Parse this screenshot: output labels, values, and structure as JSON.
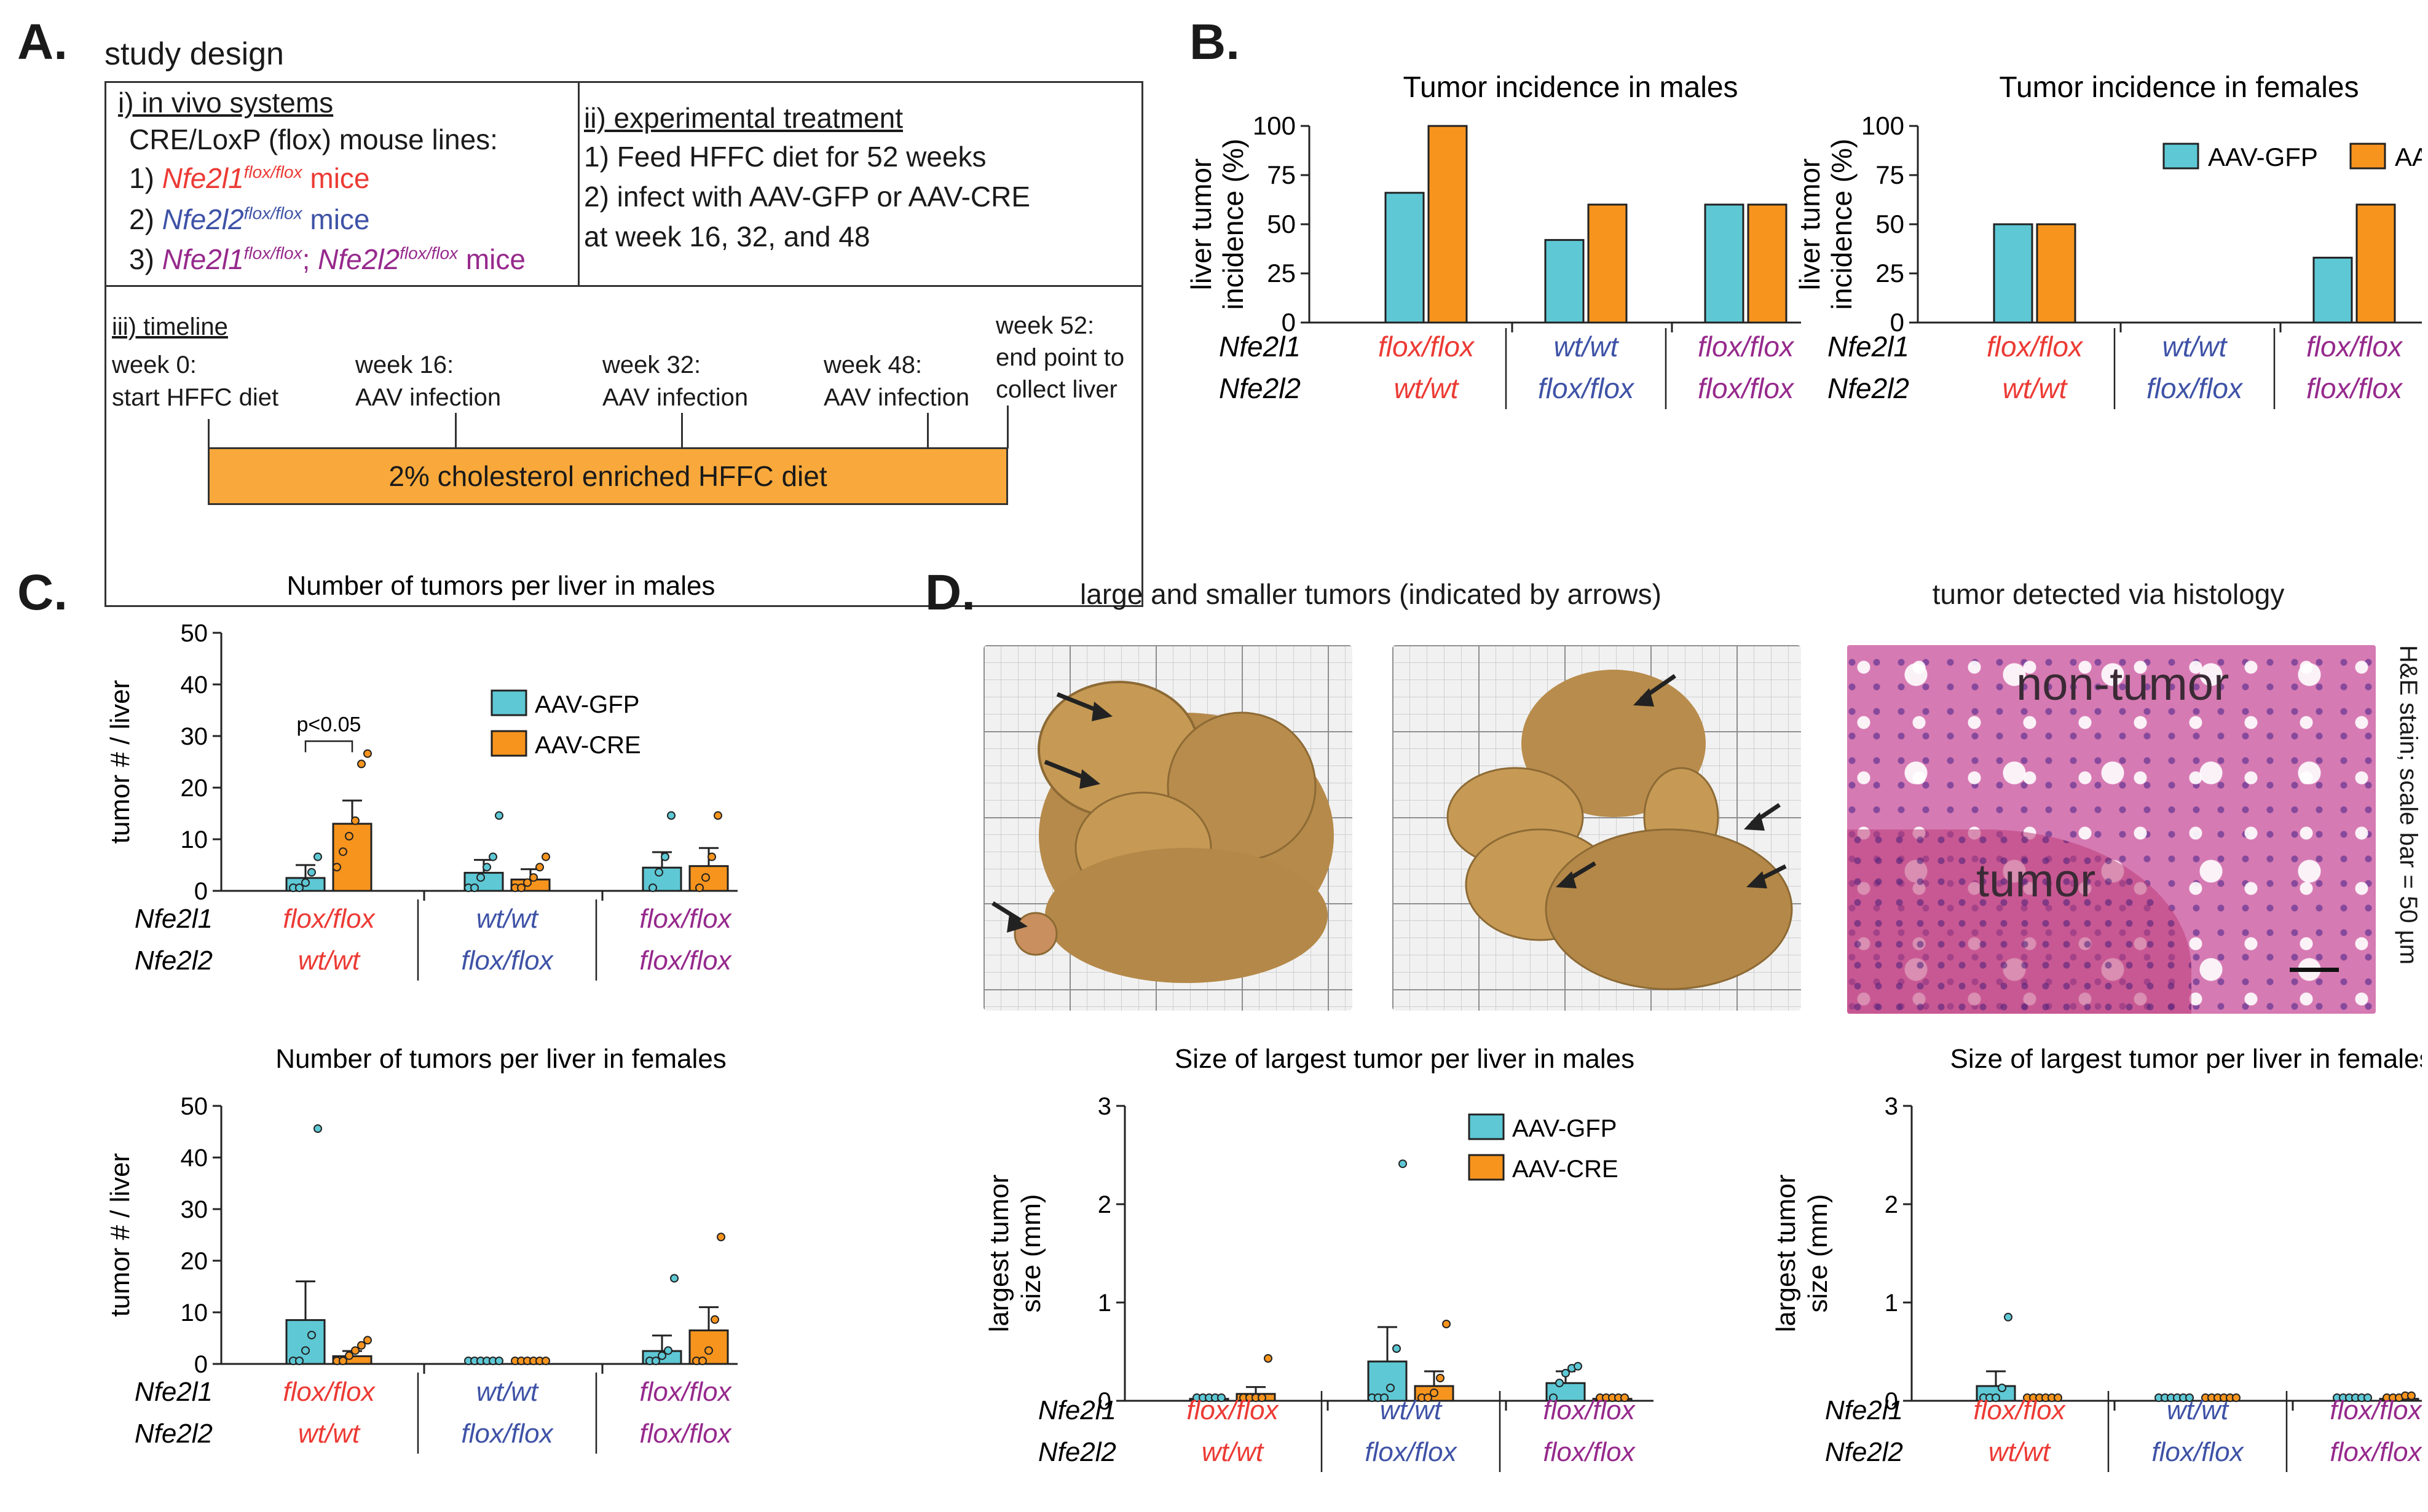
{
  "panelA": {
    "label": "A.",
    "title": "study design",
    "i_heading": "i) in vivo systems",
    "i_line1": "CRE/LoxP (flox) mouse lines:",
    "line1_num": "1)",
    "line1_gene": "Nfe2l1",
    "line1_sup": "flox/flox",
    "line1_rest": " mice",
    "line2_num": "2)",
    "line2_gene": "Nfe2l2",
    "line2_sup": "flox/flox",
    "line2_rest": " mice",
    "line3_num": "3)",
    "line3_gene1": "Nfe2l1",
    "line3_sup1": "flox/flox",
    "line3_sep": "; ",
    "line3_gene2": "Nfe2l2",
    "line3_sup2": "flox/flox",
    "line3_rest": " mice",
    "ii_heading": "ii) experimental treatment",
    "ii_line1": "1) Feed HFFC diet for 52 weeks",
    "ii_line2": "2) infect with AAV-GFP or AAV-CRE",
    "ii_line3": "at week 16, 32, and 48",
    "iii_heading": "iii) timeline",
    "t0_a": "week 0:",
    "t0_b": "start HFFC diet",
    "t16_a": "week 16:",
    "t16_b": "AAV infection",
    "t32_a": "week 32:",
    "t32_b": "AAV infection",
    "t48_a": "week 48:",
    "t48_b": "AAV infection",
    "t52_a": "week 52:",
    "t52_b": "end point to",
    "t52_c": "collect liver",
    "diet_bar": "2% cholesterol enriched HFFC diet"
  },
  "panelB": {
    "label": "B."
  },
  "panelC": {
    "label": "C.",
    "pvalue": "p<0.05"
  },
  "panelD": {
    "label": "D.",
    "photo_title": "large and smaller tumors (indicated by arrows)",
    "histo_title": "tumor detected via histology",
    "histo_nontumor": "non-tumor",
    "histo_tumor": "tumor",
    "histo_caption": "H&E stain; scale bar = 50 µm"
  },
  "legend": {
    "gfp": "AAV-GFP",
    "cre": "AAV-CRE"
  },
  "genes": {
    "g1": "Nfe2l1",
    "g2": "Nfe2l2"
  },
  "genotypes": {
    "g1": {
      "n1": "flox/flox",
      "n2": "wt/wt"
    },
    "g2": {
      "n1": "wt/wt",
      "n2": "flox/flox"
    },
    "g3": {
      "n1": "flox/flox",
      "n2": "flox/flox"
    }
  },
  "colors": {
    "gfp": "#5ec8d5",
    "cre": "#f7941d",
    "red": "#ec3a34",
    "blue": "#3e52a6",
    "purple": "#96298c",
    "timeline": "#f9a93b"
  },
  "chart_data": [
    {
      "id": "B_males",
      "type": "bar",
      "title": "Tumor incidence in males",
      "ylabel": "liver tumor incidence (%)",
      "categories": [
        "flox/flox | wt/wt",
        "wt/wt | flox/flox",
        "flox/flox | flox/flox"
      ],
      "ylim": [
        0,
        100
      ],
      "yticks": [
        0,
        25,
        50,
        75,
        100
      ],
      "series": [
        {
          "name": "AAV-GFP",
          "values": [
            66,
            42,
            60
          ]
        },
        {
          "name": "AAV-CRE",
          "values": [
            100,
            60,
            60
          ]
        }
      ]
    },
    {
      "id": "B_females",
      "type": "bar",
      "title": "Tumor incidence in females",
      "ylabel": "liver tumor incidence (%)",
      "categories": [
        "flox/flox | wt/wt",
        "wt/wt | flox/flox",
        "flox/flox | flox/flox"
      ],
      "ylim": [
        0,
        100
      ],
      "yticks": [
        0,
        25,
        50,
        75,
        100
      ],
      "series": [
        {
          "name": "AAV-GFP",
          "values": [
            50,
            0,
            33
          ]
        },
        {
          "name": "AAV-CRE",
          "values": [
            50,
            0,
            60
          ]
        }
      ]
    },
    {
      "id": "C_males",
      "type": "bar",
      "title": "Number of tumors per liver in males",
      "ylabel": "tumor # / liver",
      "ylim": [
        0,
        50
      ],
      "yticks": [
        0,
        10,
        20,
        30,
        40,
        50
      ],
      "series": [
        {
          "name": "AAV-GFP",
          "values": [
            2.5,
            3.5,
            4.5
          ],
          "errors": [
            2.5,
            2.5,
            3.0
          ],
          "points": [
            [
              0,
              0,
              1,
              3,
              6
            ],
            [
              0,
              0,
              2,
              4,
              6,
              14
            ],
            [
              0,
              3,
              6,
              14
            ]
          ]
        },
        {
          "name": "AAV-CRE",
          "values": [
            13,
            2.2,
            4.8
          ],
          "errors": [
            4.5,
            2.0,
            3.5
          ],
          "points": [
            [
              4,
              7,
              10,
              13,
              24,
              26
            ],
            [
              0,
              0,
              1,
              2,
              4,
              6
            ],
            [
              0,
              2,
              6,
              14
            ]
          ]
        }
      ]
    },
    {
      "id": "C_females",
      "type": "bar",
      "title": "Number of tumors per liver in females",
      "ylabel": "tumor # / liver",
      "ylim": [
        0,
        50
      ],
      "yticks": [
        0,
        10,
        20,
        30,
        40,
        50
      ],
      "series": [
        {
          "name": "AAV-GFP",
          "values": [
            8.5,
            0,
            2.5
          ],
          "errors": [
            7.5,
            0,
            3.0
          ],
          "points": [
            [
              0,
              0,
              2,
              5,
              45
            ],
            [
              0,
              0,
              0,
              0,
              0,
              0
            ],
            [
              0,
              0,
              1,
              2,
              16
            ]
          ]
        },
        {
          "name": "AAV-CRE",
          "values": [
            1.5,
            0,
            6.5
          ],
          "errors": [
            1.0,
            0,
            4.5
          ],
          "points": [
            [
              0,
              0,
              1,
              2,
              3,
              4
            ],
            [
              0,
              0,
              0,
              0,
              0,
              0
            ],
            [
              0,
              0,
              2,
              8,
              24
            ]
          ]
        }
      ]
    },
    {
      "id": "D_males",
      "type": "bar",
      "title": "Size of largest tumor per liver in males",
      "ylabel": "largest tumor size (mm)",
      "ylim": [
        0,
        3
      ],
      "yticks": [
        0,
        1,
        2,
        3
      ],
      "series": [
        {
          "name": "AAV-GFP",
          "values": [
            0.02,
            0.4,
            0.18
          ],
          "errors": [
            0.02,
            0.35,
            0.12
          ],
          "points": [
            [
              0,
              0,
              0,
              0,
              0
            ],
            [
              0,
              0,
              0,
              0.1,
              0.5,
              2.38
            ],
            [
              0,
              0.15,
              0.25,
              0.3,
              0.32
            ]
          ]
        },
        {
          "name": "AAV-CRE",
          "values": [
            0.07,
            0.15,
            0.02
          ],
          "errors": [
            0.07,
            0.15,
            0.01
          ],
          "points": [
            [
              0,
              0,
              0,
              0,
              0.4
            ],
            [
              0,
              0,
              0.05,
              0.2,
              0.75
            ],
            [
              0,
              0,
              0,
              0,
              0
            ]
          ]
        }
      ]
    },
    {
      "id": "D_females",
      "type": "bar",
      "title": "Size of largest tumor per liver in females",
      "ylabel": "largest tumor size (mm)",
      "ylim": [
        0,
        3
      ],
      "yticks": [
        0,
        1,
        2,
        3
      ],
      "series": [
        {
          "name": "AAV-GFP",
          "values": [
            0.15,
            0,
            0
          ],
          "errors": [
            0.15,
            0,
            0
          ],
          "points": [
            [
              0,
              0,
              0,
              0.1,
              0.82
            ],
            [
              0,
              0,
              0,
              0,
              0,
              0
            ],
            [
              0,
              0,
              0,
              0,
              0,
              0
            ]
          ]
        },
        {
          "name": "AAV-CRE",
          "values": [
            0,
            0,
            0.02
          ],
          "errors": [
            0,
            0,
            0
          ],
          "points": [
            [
              0,
              0,
              0,
              0,
              0,
              0
            ],
            [
              0,
              0,
              0,
              0,
              0,
              0
            ],
            [
              0,
              0,
              0,
              0.02,
              0.02
            ]
          ]
        }
      ]
    }
  ]
}
